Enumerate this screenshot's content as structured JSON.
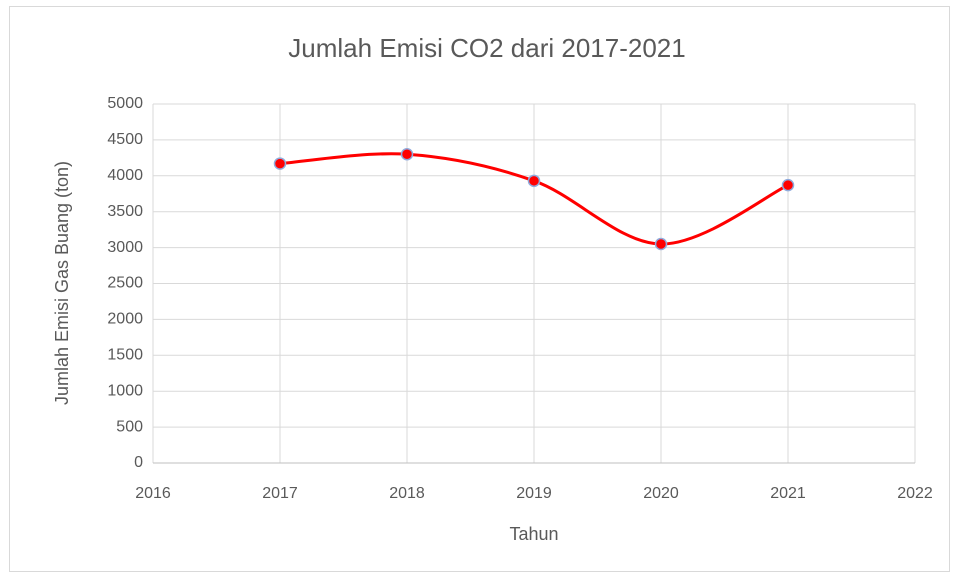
{
  "chart_data": {
    "type": "line",
    "title": "Jumlah Emisi CO2 dari 2017-2021",
    "x_label": "Tahun",
    "y_label": "Jumlah Emisi Gas Buang (ton)",
    "x": [
      2017,
      2018,
      2019,
      2020,
      2021
    ],
    "series": [
      {
        "name": "Jumlah Emisi CO2",
        "color": "#ff0000",
        "marker_edge_color": "#8faadc",
        "values": [
          4170,
          4300,
          3930,
          3050,
          3870
        ]
      }
    ],
    "xlim": [
      2016,
      2022
    ],
    "xticks": [
      2016,
      2017,
      2018,
      2019,
      2020,
      2021,
      2022
    ],
    "ylim": [
      0,
      5000
    ],
    "yticks": [
      0,
      500,
      1000,
      1500,
      2000,
      2500,
      3000,
      3500,
      4000,
      4500,
      5000
    ],
    "grid": true,
    "smooth": true
  }
}
